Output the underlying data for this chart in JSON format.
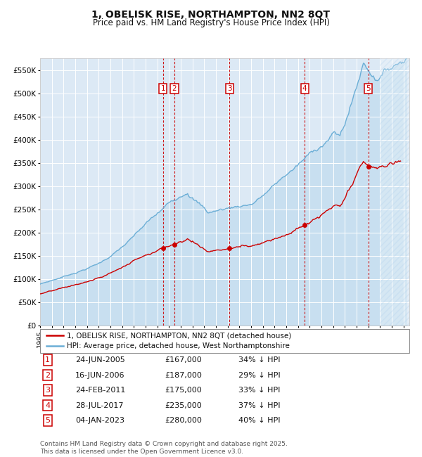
{
  "title": "1, OBELISK RISE, NORTHAMPTON, NN2 8QT",
  "subtitle": "Price paid vs. HM Land Registry's House Price Index (HPI)",
  "ylim": [
    0,
    575000
  ],
  "yticks": [
    0,
    50000,
    100000,
    150000,
    200000,
    250000,
    300000,
    350000,
    400000,
    450000,
    500000,
    550000
  ],
  "ytick_labels": [
    "£0",
    "£50K",
    "£100K",
    "£150K",
    "£200K",
    "£250K",
    "£300K",
    "£350K",
    "£400K",
    "£450K",
    "£500K",
    "£550K"
  ],
  "xlim_start": 1995.0,
  "xlim_end": 2026.5,
  "background_color": "#ffffff",
  "plot_bg_color": "#dce9f5",
  "grid_color": "#ffffff",
  "hpi_line_color": "#6baed6",
  "price_line_color": "#cc0000",
  "hpi_fill_color": "#dce9f5",
  "sale_marker_color": "#cc0000",
  "vline_color": "#cc0000",
  "transactions": [
    {
      "num": 1,
      "date": "24-JUN-2005",
      "price": 167000,
      "pct": "34%",
      "x": 2005.48
    },
    {
      "num": 2,
      "date": "16-JUN-2006",
      "price": 187000,
      "pct": "29%",
      "x": 2006.46
    },
    {
      "num": 3,
      "date": "24-FEB-2011",
      "price": 175000,
      "pct": "33%",
      "x": 2011.15
    },
    {
      "num": 4,
      "date": "28-JUL-2017",
      "price": 235000,
      "pct": "37%",
      "x": 2017.57
    },
    {
      "num": 5,
      "date": "04-JAN-2023",
      "price": 280000,
      "pct": "40%",
      "x": 2023.01
    }
  ],
  "legend_label_red": "1, OBELISK RISE, NORTHAMPTON, NN2 8QT (detached house)",
  "legend_label_blue": "HPI: Average price, detached house, West Northamptonshire",
  "footer": "Contains HM Land Registry data © Crown copyright and database right 2025.\nThis data is licensed under the Open Government Licence v3.0.",
  "title_fontsize": 10,
  "subtitle_fontsize": 8.5,
  "tick_fontsize": 7.5,
  "legend_fontsize": 7.5,
  "table_fontsize": 8,
  "footer_fontsize": 6.5
}
